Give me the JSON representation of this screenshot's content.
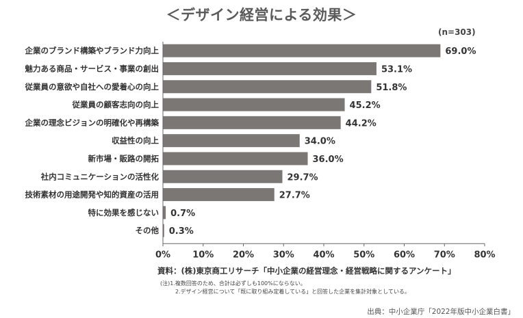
{
  "chart_data": {
    "type": "bar",
    "orientation": "horizontal",
    "title": "＜デザイン経営による効果＞",
    "sample_size": "(n=303)",
    "categories": [
      "企業のブランド構築やブランド力向上",
      "魅力ある商品・サービス・事業の創出",
      "従業員の意欲や自社への愛着心の向上",
      "従業員の顧客志向の向上",
      "企業の理念ビジョンの明確化や再構築",
      "収益性の向上",
      "新市場・販路の開拓",
      "社内コミュニケーションの活性化",
      "技術素材の用途開発や知的資産の活用",
      "特に効果を感じない",
      "その他"
    ],
    "values": [
      69.0,
      53.1,
      51.8,
      45.2,
      44.2,
      34.0,
      36.0,
      29.7,
      27.7,
      0.7,
      0.3
    ],
    "value_labels": [
      "69.0%",
      "53.1%",
      "51.8%",
      "45.2%",
      "44.2%",
      "34.0%",
      "36.0%",
      "29.7%",
      "27.7%",
      "0.7%",
      "0.3%"
    ],
    "xlim": [
      0,
      80
    ],
    "ticks": [
      0,
      10,
      20,
      30,
      40,
      50,
      60,
      70,
      80
    ],
    "tick_labels": [
      "0%",
      "10%",
      "20%",
      "30%",
      "40%",
      "50%",
      "60%",
      "70%",
      "80%"
    ],
    "bar_color": "#7b7775",
    "grid": false,
    "source": "資料：(株)東京商工リサーチ「中小企業の経営理念・経営戦略に関するアンケート」",
    "notes": [
      "(注)1.複数回答のため、合計は必ずしも100%にならない。",
      "2.デザイン経営について「既に取り組み定着している」と回答した企業を集計対象としている。"
    ],
    "credit": "出典：中小企業庁「2022年版中小企業白書」"
  }
}
